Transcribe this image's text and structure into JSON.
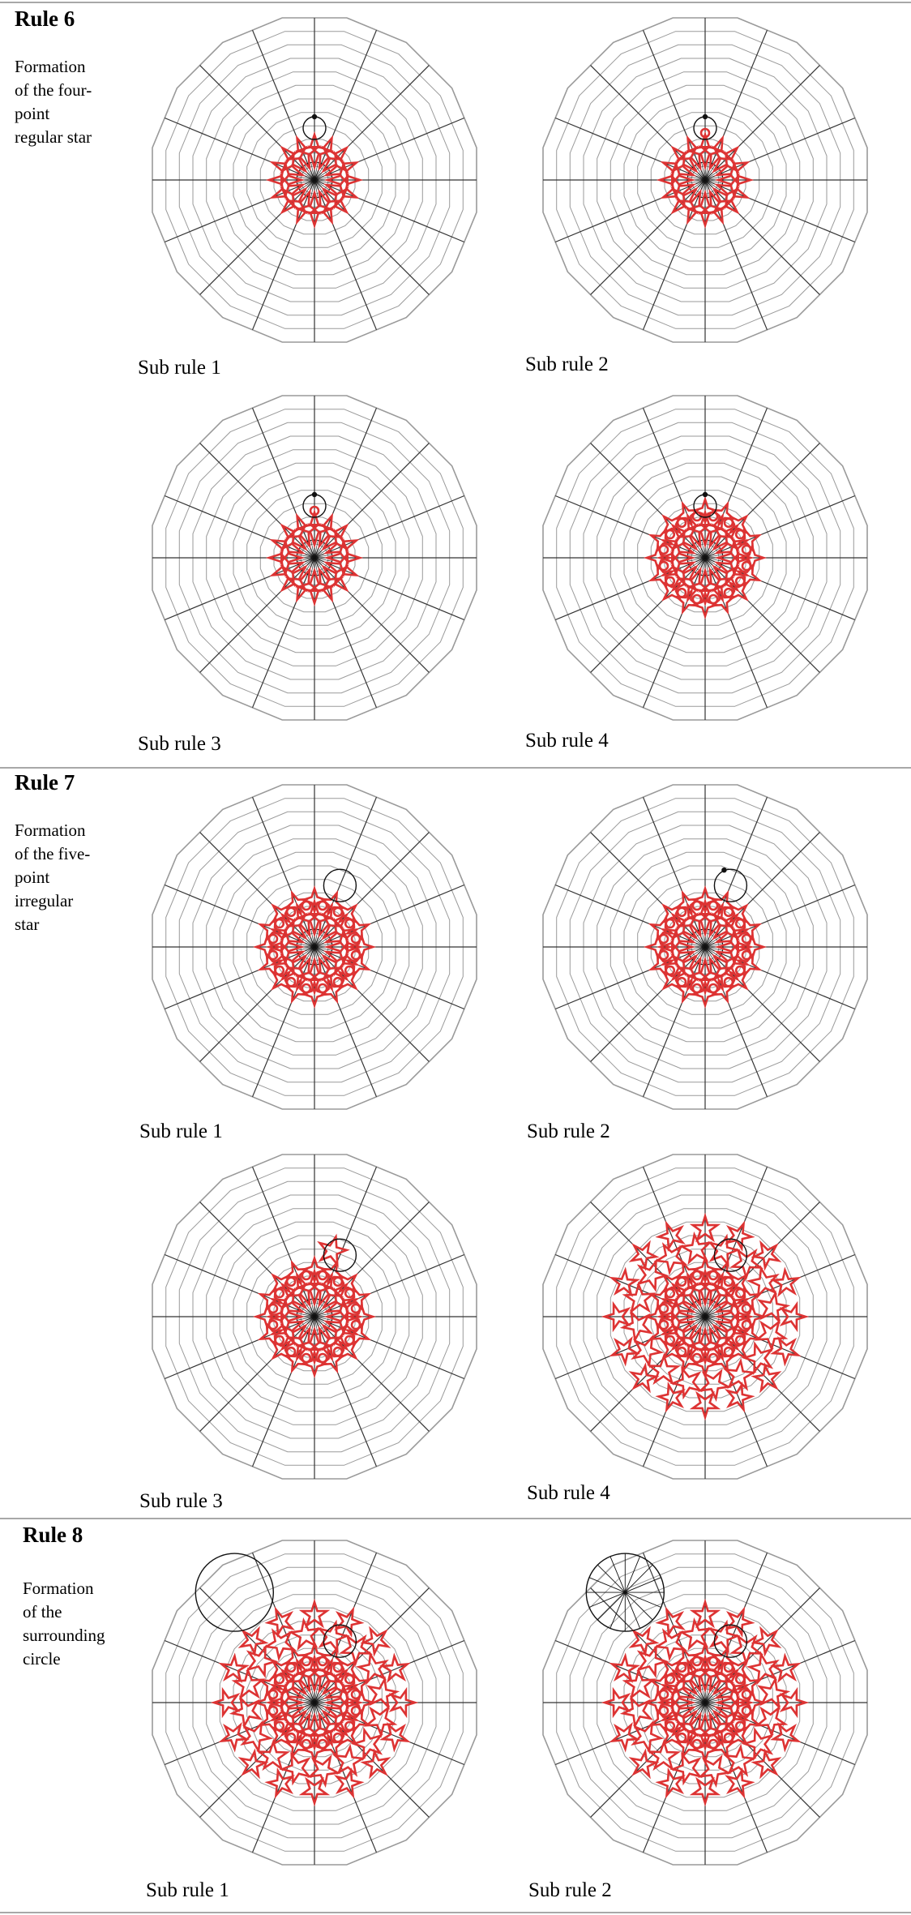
{
  "rules": [
    {
      "title": "Rule 6",
      "description": "Formation\nof the four-\npoint\nregular star",
      "panels": [
        {
          "caption": "Sub rule 1",
          "stage": "6-1"
        },
        {
          "caption": "Sub rule 2",
          "stage": "6-2"
        },
        {
          "caption": "Sub rule 3",
          "stage": "6-3"
        },
        {
          "caption": "Sub rule 4",
          "stage": "6-4"
        }
      ]
    },
    {
      "title": "Rule 7",
      "description": "Formation\nof the five-\npoint\nirregular\nstar",
      "panels": [
        {
          "caption": "Sub rule 1",
          "stage": "7-1"
        },
        {
          "caption": "Sub rule 2",
          "stage": "7-2"
        },
        {
          "caption": "Sub rule 3",
          "stage": "7-3"
        },
        {
          "caption": "Sub rule 4",
          "stage": "7-4"
        }
      ]
    },
    {
      "title": "Rule 8",
      "description": "Formation\nof the\nsurrounding\ncircle",
      "panels": [
        {
          "caption": "Sub rule 1",
          "stage": "8-1"
        },
        {
          "caption": "Sub rule 2",
          "stage": "8-2"
        }
      ]
    }
  ],
  "colors": {
    "grid": "#9a9a9a",
    "spoke": "#333333",
    "star": "#dd3333",
    "ink": "#111111",
    "panel_bg": "#f7f7f7",
    "divider": "#a8a8a8"
  }
}
